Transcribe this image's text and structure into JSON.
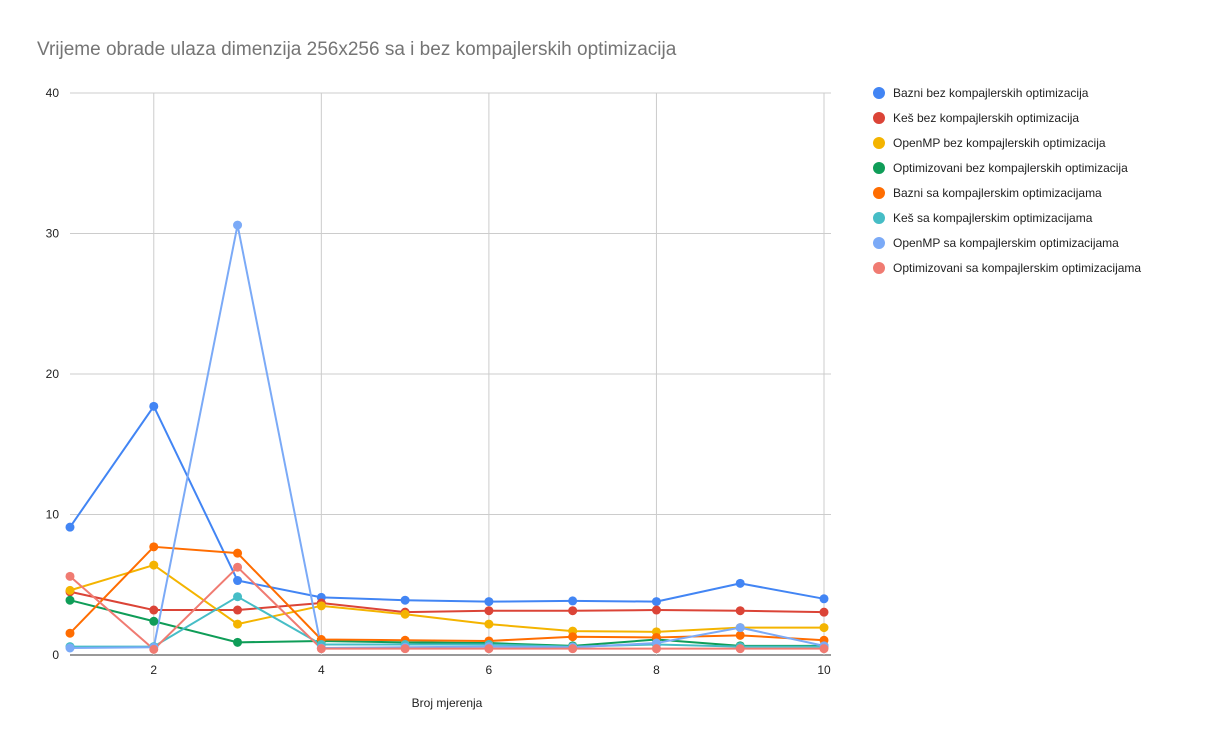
{
  "chart_data": {
    "type": "line",
    "title": "Vrijeme obrade ulaza dimenzija 256x256 sa i bez kompajlerskih optimizacija",
    "xlabel": "Broj mjerenja",
    "ylabel": "",
    "x": [
      1,
      2,
      3,
      4,
      5,
      6,
      7,
      8,
      9,
      10
    ],
    "xlim": [
      1,
      10
    ],
    "ylim": [
      0,
      40
    ],
    "xticks": [
      2,
      4,
      6,
      8,
      10
    ],
    "yticks": [
      0,
      10,
      20,
      30,
      40
    ],
    "grid": true,
    "legend_position": "right",
    "series": [
      {
        "name": "Bazni bez kompajlerskih optimizacija",
        "color": "#4285f4",
        "values": [
          9.1,
          17.7,
          5.3,
          4.1,
          3.9,
          3.8,
          3.85,
          3.8,
          5.1,
          4.0
        ]
      },
      {
        "name": "Keš bez kompajlerskih optimizacija",
        "color": "#db4437",
        "values": [
          4.5,
          3.2,
          3.2,
          3.7,
          3.05,
          3.15,
          3.15,
          3.2,
          3.15,
          3.05
        ]
      },
      {
        "name": "OpenMP bez kompajlerskih optimizacija",
        "color": "#f4b400",
        "values": [
          4.6,
          6.4,
          2.2,
          3.5,
          2.9,
          2.2,
          1.7,
          1.65,
          1.95,
          1.95
        ]
      },
      {
        "name": "Optimizovani bez kompajlerskih optimizacija",
        "color": "#0f9d58",
        "values": [
          3.9,
          2.4,
          0.9,
          1.0,
          0.9,
          0.85,
          0.65,
          1.1,
          0.65,
          0.65
        ]
      },
      {
        "name": "Bazni sa kompajlerskim optimizacijama",
        "color": "#ff6d01",
        "values": [
          1.55,
          7.7,
          7.25,
          1.1,
          1.05,
          1.0,
          1.3,
          1.25,
          1.4,
          1.05
        ]
      },
      {
        "name": "Keš sa kompajlerskim optimizacijama",
        "color": "#46bdc6",
        "values": [
          0.6,
          0.6,
          4.15,
          0.75,
          0.75,
          0.75,
          0.6,
          0.75,
          0.6,
          0.6
        ]
      },
      {
        "name": "OpenMP sa kompajlerskim optimizacijama",
        "color": "#7baaf7",
        "values": [
          0.5,
          0.55,
          30.6,
          0.5,
          0.55,
          0.6,
          0.55,
          0.85,
          1.95,
          0.65
        ]
      },
      {
        "name": "Optimizovani sa kompajlerskim optimizacijama",
        "color": "#f07b72",
        "values": [
          5.6,
          0.4,
          6.25,
          0.45,
          0.45,
          0.45,
          0.45,
          0.45,
          0.45,
          0.45
        ]
      }
    ]
  }
}
